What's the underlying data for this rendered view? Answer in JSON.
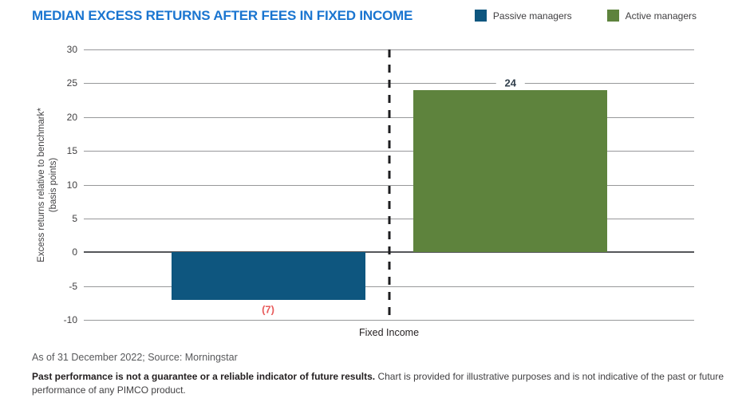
{
  "title": "MEDIAN EXCESS RETURNS AFTER FEES IN FIXED INCOME",
  "colors": {
    "title_blue": "#1a75d0",
    "passive_blue": "#0e567f",
    "active_green": "#5e833d",
    "negative_label_red": "#e85c5c",
    "positive_label_dark": "#33414e",
    "gridline_gray": "#97989a",
    "zero_line_gray": "#55565a",
    "dashed_divider_black": "#1d1d1f"
  },
  "legend": {
    "items": [
      {
        "label": "Passive managers",
        "color": "#0e567f"
      },
      {
        "label": "Active managers",
        "color": "#5e833d"
      }
    ]
  },
  "chart_data": {
    "type": "bar",
    "title": "MEDIAN EXCESS RETURNS AFTER FEES IN FIXED INCOME",
    "categories": [
      "Fixed Income"
    ],
    "series": [
      {
        "name": "Passive managers",
        "values": [
          -7
        ],
        "color": "#0e567f",
        "data_label": "(7)",
        "data_label_color": "#e85c5c"
      },
      {
        "name": "Active managers",
        "values": [
          24
        ],
        "color": "#5e833d",
        "data_label": "24",
        "data_label_color": "#33414e"
      }
    ],
    "ylabel_line1": "Excess returns relative to benchmark*",
    "ylabel_line2": "(basis points)",
    "xlabel": "",
    "ylim": [
      -10,
      30
    ],
    "yticks": [
      30,
      25,
      20,
      15,
      10,
      5,
      0,
      -5,
      -10
    ],
    "grid": true,
    "legend_position": "top-right",
    "annotations": [
      "dashed vertical divider line at category center"
    ]
  },
  "xaxis": {
    "category_label": "Fixed Income"
  },
  "footer": {
    "source_line": "As of 31 December 2022; Source: Morningstar",
    "disclaimer_bold": "Past performance is not a guarantee or a reliable indicator of future results.",
    "disclaimer_rest": " Chart is provided for illustrative purposes and is not indicative of the past or future performance of any PIMCO product."
  }
}
